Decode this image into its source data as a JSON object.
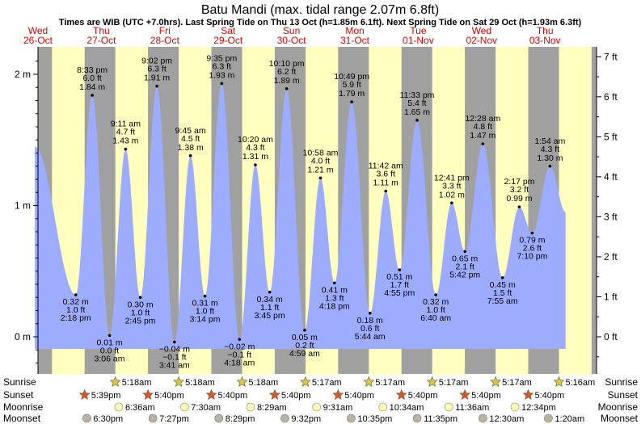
{
  "chart_data": {
    "type": "area",
    "title": "Batu Mandi (max. tidal range 2.07m 6.8ft)",
    "subtitle": "Times are WIB (UTC +7.0hrs). Last Spring Tide on Thu 13 Oct (h=1.85m 6.1ft). Next Spring Tide on Sat 29 Oct (h=1.93m 6.3ft)",
    "day_headers": [
      {
        "day": "Wed",
        "date": "26-Oct",
        "t": 0
      },
      {
        "day": "Thu",
        "date": "27-Oct",
        "t": 24
      },
      {
        "day": "Fri",
        "date": "28-Oct",
        "t": 48
      },
      {
        "day": "Sat",
        "date": "29-Oct",
        "t": 72
      },
      {
        "day": "Sun",
        "date": "30-Oct",
        "t": 96
      },
      {
        "day": "Mon",
        "date": "31-Oct",
        "t": 120
      },
      {
        "day": "Tue",
        "date": "01-Nov",
        "t": 144
      },
      {
        "day": "Wed",
        "date": "02-Nov",
        "t": 168
      },
      {
        "day": "Thu",
        "date": "03-Nov",
        "t": 192
      }
    ],
    "y_left": {
      "ticks": [
        {
          "v": 0,
          "label": "0 m"
        },
        {
          "v": 1,
          "label": "1 m"
        },
        {
          "v": 2,
          "label": "2 m"
        }
      ]
    },
    "y_right": {
      "ticks": [
        {
          "v": 0,
          "label": "0 ft"
        },
        {
          "v": 1,
          "label": "1 ft"
        },
        {
          "v": 2,
          "label": "2 ft"
        },
        {
          "v": 3,
          "label": "3 ft"
        },
        {
          "v": 4,
          "label": "4 ft"
        },
        {
          "v": 5,
          "label": "5 ft"
        },
        {
          "v": 6,
          "label": "6 ft"
        },
        {
          "v": 7,
          "label": "7 ft"
        }
      ]
    },
    "ylim": [
      -0.25,
      2.2
    ],
    "curve_start": {
      "t": -1.2,
      "h": 1.45
    },
    "curve_end": {
      "t": 199.8,
      "h": 0.95
    },
    "tides": [
      {
        "t": 14.3,
        "h": 0.32,
        "time": "2:18 pm",
        "m": "0.32 m",
        "ft": "1.0 ft",
        "type": "low"
      },
      {
        "t": 20.55,
        "h": 1.84,
        "time": "8:33 pm",
        "m": "1.84 m",
        "ft": "6.0 ft",
        "type": "high"
      },
      {
        "t": 27.1,
        "h": 0.01,
        "time": "3:06 am",
        "m": "0.01 m",
        "ft": "0.0 ft",
        "type": "low"
      },
      {
        "t": 33.18,
        "h": 1.43,
        "time": "9:11 am",
        "m": "1.43 m",
        "ft": "4.7 ft",
        "type": "high"
      },
      {
        "t": 38.75,
        "h": 0.3,
        "time": "2:45 pm",
        "m": "0.30 m",
        "ft": "1.0 ft",
        "type": "low"
      },
      {
        "t": 45.03,
        "h": 1.91,
        "time": "9:02 pm",
        "m": "1.91 m",
        "ft": "6.3 ft",
        "type": "high"
      },
      {
        "t": 51.68,
        "h": -0.04,
        "time": "3:41 am",
        "m": "−0.04 m",
        "ft": "−0.1 ft",
        "type": "low"
      },
      {
        "t": 57.75,
        "h": 1.38,
        "time": "9:45 am",
        "m": "1.38 m",
        "ft": "4.5 ft",
        "type": "high"
      },
      {
        "t": 63.23,
        "h": 0.31,
        "time": "3:14 pm",
        "m": "0.31 m",
        "ft": "1.0 ft",
        "type": "low"
      },
      {
        "t": 69.58,
        "h": 1.93,
        "time": "9:35 pm",
        "m": "1.93 m",
        "ft": "6.3 ft",
        "type": "high"
      },
      {
        "t": 76.3,
        "h": -0.02,
        "time": "4:18 am",
        "m": "−0.02 m",
        "ft": "−0.1 ft",
        "type": "low"
      },
      {
        "t": 82.33,
        "h": 1.31,
        "time": "10:20 am",
        "m": "1.31 m",
        "ft": "4.3 ft",
        "type": "high"
      },
      {
        "t": 87.75,
        "h": 0.34,
        "time": "3:45 pm",
        "m": "0.34 m",
        "ft": "1.1 ft",
        "type": "low"
      },
      {
        "t": 94.17,
        "h": 1.89,
        "time": "10:10 pm",
        "m": "1.89 m",
        "ft": "6.2 ft",
        "type": "high"
      },
      {
        "t": 100.98,
        "h": 0.05,
        "time": "4:59 am",
        "m": "0.05 m",
        "ft": "0.2 ft",
        "type": "low"
      },
      {
        "t": 106.97,
        "h": 1.21,
        "time": "10:58 am",
        "m": "1.21 m",
        "ft": "4.0 ft",
        "type": "high"
      },
      {
        "t": 112.3,
        "h": 0.41,
        "time": "4:18 pm",
        "m": "0.41 m",
        "ft": "1.3 ft",
        "type": "low"
      },
      {
        "t": 118.82,
        "h": 1.79,
        "time": "10:49 pm",
        "m": "1.79 m",
        "ft": "5.9 ft",
        "type": "high"
      },
      {
        "t": 125.73,
        "h": 0.18,
        "time": "5:44 am",
        "m": "0.18 m",
        "ft": "0.6 ft",
        "type": "low"
      },
      {
        "t": 131.7,
        "h": 1.11,
        "time": "11:42 am",
        "m": "1.11 m",
        "ft": "3.6 ft",
        "type": "high"
      },
      {
        "t": 136.92,
        "h": 0.51,
        "time": "4:55 pm",
        "m": "0.51 m",
        "ft": "1.7 ft",
        "type": "low"
      },
      {
        "t": 143.55,
        "h": 1.65,
        "time": "11:33 pm",
        "m": "1.65 m",
        "ft": "5.4 ft",
        "type": "high"
      },
      {
        "t": 150.67,
        "h": 0.32,
        "time": "6:40 am",
        "m": "0.32 m",
        "ft": "1.0 ft",
        "type": "low"
      },
      {
        "t": 156.68,
        "h": 1.02,
        "time": "12:41 pm",
        "m": "1.02 m",
        "ft": "3.3 ft",
        "type": "high"
      },
      {
        "t": 161.7,
        "h": 0.65,
        "time": "5:42 pm",
        "m": "0.65 m",
        "ft": "2.1 ft",
        "type": "low"
      },
      {
        "t": 168.47,
        "h": 1.47,
        "time": "12:28 am",
        "m": "1.47 m",
        "ft": "4.8 ft",
        "type": "high"
      },
      {
        "t": 175.92,
        "h": 0.45,
        "time": "7:55 am",
        "m": "0.45 m",
        "ft": "1.5 ft",
        "type": "low"
      },
      {
        "t": 182.28,
        "h": 0.99,
        "time": "2:17 pm",
        "m": "0.99 m",
        "ft": "3.2 ft",
        "type": "high"
      },
      {
        "t": 187.17,
        "h": 0.79,
        "time": "7:10 pm",
        "m": "0.79 m",
        "ft": "2.6 ft",
        "type": "low"
      },
      {
        "t": 193.9,
        "h": 1.3,
        "time": "1:54 am",
        "m": "1.30 m",
        "ft": "4.3 ft",
        "type": "high"
      }
    ],
    "sunrise": [
      "5:18am",
      "5:18am",
      "5:18am",
      "5:17am",
      "5:17am",
      "5:17am",
      "5:17am",
      "5:16am"
    ],
    "sunset": [
      "5:39pm",
      "5:40pm",
      "5:40pm",
      "5:40pm",
      "5:40pm",
      "5:40pm",
      "5:40pm",
      "5:40pm"
    ],
    "moonrise": [
      "6:36am",
      "7:30am",
      "8:29am",
      "9:31am",
      "10:34am",
      "11:36am",
      "12:34pm"
    ],
    "moonset": [
      "6:30pm",
      "7:27pm",
      "8:29pm",
      "9:32pm",
      "10:35pm",
      "11:35pm",
      "12:30am",
      "1:20am"
    ],
    "row_labels": [
      "Sunrise",
      "Sunset",
      "Moonrise",
      "Moonset"
    ],
    "colors": {
      "day_band": "#ffffc0",
      "night_band": "#a0a0a0",
      "tide_fill": "#9eacff",
      "header_red": "#dd0000",
      "sunrise_star": "#d4c84c",
      "sunset_star": "#d6543a",
      "moonrise_disk": "#fffbb8",
      "moonset_disk": "#b8b4a4"
    }
  }
}
